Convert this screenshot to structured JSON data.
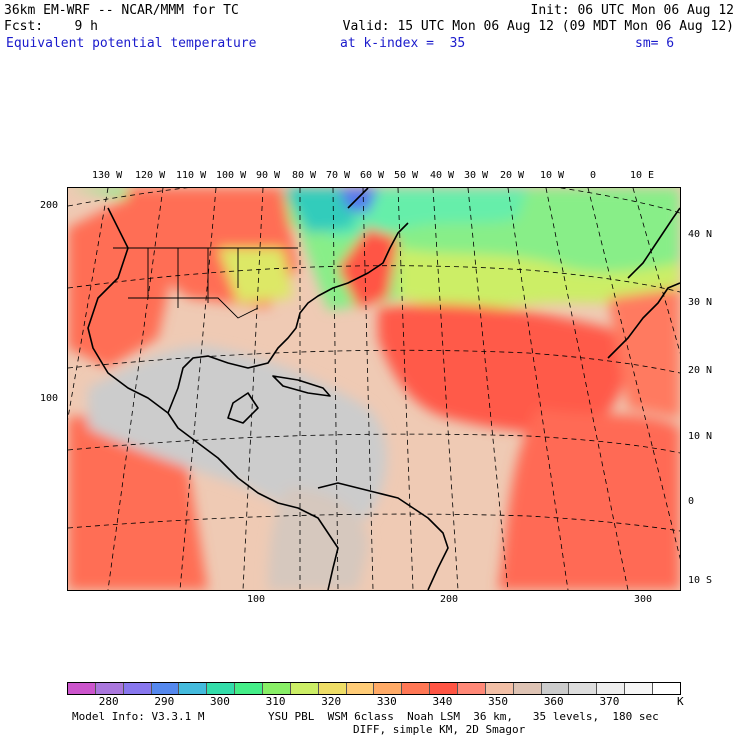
{
  "header": {
    "model": "36km EM-WRF -- NCAR/MMM for TC",
    "init": "Init: 06 UTC Mon 06 Aug 12",
    "fcst": "Fcst:    9 h",
    "valid": "Valid: 15 UTC Mon 06 Aug 12 (09 MDT Mon 06 Aug 12)",
    "field": "Equivalent potential temperature",
    "level": "at k-index =  35",
    "smooth": "sm= 6"
  },
  "map": {
    "lon_labels": [
      "130 W",
      "120 W",
      "110 W",
      "100 W",
      "90 W",
      "80 W",
      "70 W",
      "60 W",
      "50 W",
      "40 W",
      "30 W",
      "20 W",
      "10 W",
      "0",
      "10 E"
    ],
    "lat_labels": [
      "40 N",
      "30 N",
      "20 N",
      "10 N",
      "0",
      "10 S"
    ],
    "grid_left_labels": [
      "200",
      "100"
    ],
    "grid_bottom_labels": [
      "100",
      "200",
      "300"
    ]
  },
  "colorbar": {
    "colors": [
      "#cc55cc",
      "#aa77dd",
      "#8877ee",
      "#5588ee",
      "#44bbdd",
      "#33ddaa",
      "#44ee88",
      "#88ee66",
      "#ccee66",
      "#eedd66",
      "#ffcc77",
      "#ffaa66",
      "#ff7755",
      "#ff5544",
      "#ff8877",
      "#f2bfa6",
      "#dec3b4",
      "#cccccc",
      "#dddddd",
      "#eeeeee",
      "#f6f6f6",
      "#ffffff"
    ],
    "labels": [
      "280",
      "290",
      "300",
      "310",
      "320",
      "330",
      "340",
      "350",
      "360",
      "370"
    ],
    "unit": "K"
  },
  "footer": {
    "info": "Model Info: V3.3.1 M",
    "physics": "YSU PBL  WSM 6class  Noah LSM  36 km,   35 levels,  180 sec",
    "diff": "DIFF, simple KM, 2D Smagor"
  }
}
